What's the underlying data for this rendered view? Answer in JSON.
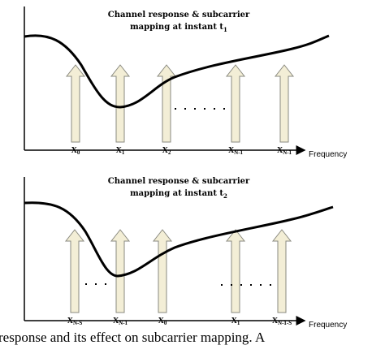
{
  "panels": [
    {
      "title_line1": "Channel response & subcarrier",
      "title_line2": {
        "text": "mapping at instant t",
        "sub": "1"
      },
      "labels": [
        {
          "base": "X",
          "sub": "0"
        },
        {
          "base": "X",
          "sub": "1"
        },
        {
          "base": "X",
          "sub": "2"
        },
        {
          "base": "X",
          "sub": "N-1"
        },
        {
          "base": "X",
          "sub": "N-1"
        }
      ],
      "axis_label": "Frequency"
    },
    {
      "title_line1": "Channel response & subcarrier",
      "title_line2": {
        "text": "mapping at instant t",
        "sub": "2"
      },
      "labels": [
        {
          "base": "X",
          "sub": "N-S"
        },
        {
          "base": "X",
          "sub": "N-1"
        },
        {
          "base": "X",
          "sub": "0"
        },
        {
          "base": "X",
          "sub": "1"
        },
        {
          "base": "X",
          "sub": "N-1-S"
        }
      ],
      "axis_label": "Frequency"
    }
  ],
  "caption": "response and its effect on subcarrier mapping. A"
}
